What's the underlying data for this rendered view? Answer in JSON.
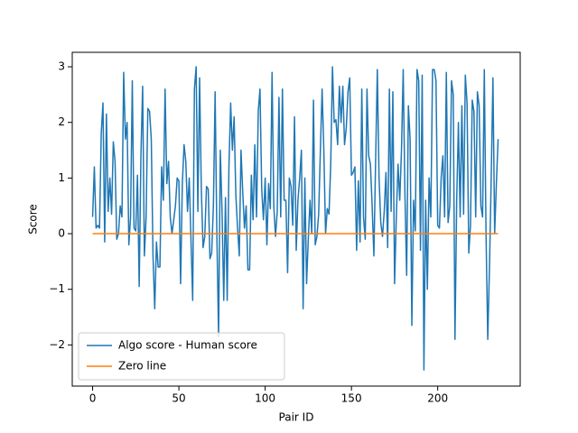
{
  "chart_data": {
    "type": "line",
    "xlabel": "Pair ID",
    "ylabel": "Score",
    "x": [
      0,
      1,
      2,
      3,
      4,
      5,
      6,
      7,
      8,
      9,
      10,
      11,
      12,
      13,
      14,
      15,
      16,
      17,
      18,
      19,
      20,
      21,
      22,
      23,
      24,
      25,
      26,
      27,
      28,
      29,
      30,
      31,
      32,
      33,
      34,
      35,
      36,
      37,
      38,
      39,
      40,
      41,
      42,
      43,
      44,
      45,
      46,
      47,
      48,
      49,
      50,
      51,
      52,
      53,
      54,
      55,
      56,
      57,
      58,
      59,
      60,
      61,
      62,
      63,
      64,
      65,
      66,
      67,
      68,
      69,
      70,
      71,
      72,
      73,
      74,
      75,
      76,
      77,
      78,
      79,
      80,
      81,
      82,
      83,
      84,
      85,
      86,
      87,
      88,
      89,
      90,
      91,
      92,
      93,
      94,
      95,
      96,
      97,
      98,
      99,
      100,
      101,
      102,
      103,
      104,
      105,
      106,
      107,
      108,
      109,
      110,
      111,
      112,
      113,
      114,
      115,
      116,
      117,
      118,
      119,
      120,
      121,
      122,
      123,
      124,
      125,
      126,
      127,
      128,
      129,
      130,
      131,
      132,
      133,
      134,
      135,
      136,
      137,
      138,
      139,
      140,
      141,
      142,
      143,
      144,
      145,
      146,
      147,
      148,
      149,
      150,
      151,
      152,
      153,
      154,
      155,
      156,
      157,
      158,
      159,
      160,
      161,
      162,
      163,
      164,
      165,
      166,
      167,
      168,
      169,
      170,
      171,
      172,
      173,
      174,
      175,
      176,
      177,
      178,
      179,
      180,
      181,
      182,
      183,
      184,
      185,
      186,
      187,
      188,
      189,
      190,
      191,
      192,
      193,
      194,
      195,
      196,
      197,
      198,
      199,
      200,
      201,
      202,
      203,
      204,
      205,
      206,
      207,
      208,
      209,
      210,
      211,
      212,
      213,
      214,
      215,
      216,
      217,
      218,
      219,
      220,
      221,
      222,
      223,
      224,
      225,
      226,
      227,
      228,
      229,
      230,
      231,
      232,
      233,
      234,
      235
    ],
    "series": [
      {
        "name": "Algo score - Human score",
        "color": "#1f77b4",
        "values": [
          0.3,
          1.2,
          0.1,
          0.15,
          0.1,
          1.8,
          2.35,
          -0.15,
          2.15,
          0.4,
          1.0,
          0.35,
          1.65,
          1.3,
          -0.1,
          0.0,
          0.5,
          0.3,
          2.9,
          1.7,
          2.0,
          -0.2,
          0.3,
          2.75,
          0.1,
          0.05,
          1.05,
          -0.95,
          1.4,
          2.65,
          -0.4,
          0.3,
          2.25,
          2.2,
          1.7,
          -0.4,
          -1.35,
          -0.15,
          -0.6,
          -0.6,
          1.2,
          0.6,
          2.6,
          0.9,
          1.3,
          0.3,
          0.0,
          0.25,
          0.5,
          1.0,
          0.95,
          -0.9,
          0.9,
          1.6,
          1.3,
          0.4,
          1.0,
          -0.1,
          -1.2,
          2.6,
          3.0,
          0.4,
          2.8,
          0.8,
          -0.25,
          -0.05,
          0.85,
          0.8,
          -0.45,
          -0.35,
          0.5,
          2.55,
          0.0,
          -1.85,
          1.5,
          0.4,
          -1.2,
          0.65,
          -1.2,
          1.2,
          2.35,
          1.5,
          2.1,
          0.7,
          0.1,
          -0.4,
          1.5,
          0.75,
          0.1,
          0.5,
          -0.65,
          -0.65,
          1.05,
          0.25,
          1.6,
          0.3,
          2.2,
          2.6,
          0.8,
          0.25,
          1.0,
          -0.2,
          0.9,
          0.45,
          2.9,
          0.5,
          -0.05,
          0.4,
          2.45,
          0.3,
          2.6,
          0.6,
          0.6,
          -0.7,
          1.0,
          0.85,
          0.15,
          2.1,
          -0.3,
          0.6,
          1.0,
          1.5,
          -1.35,
          1.0,
          -0.9,
          -0.1,
          0.6,
          0.0,
          2.4,
          -0.2,
          -0.05,
          0.35,
          1.5,
          2.6,
          1.5,
          0.0,
          0.45,
          0.35,
          1.25,
          3.0,
          2.0,
          2.05,
          1.6,
          2.65,
          2.0,
          2.65,
          1.6,
          1.9,
          2.55,
          2.8,
          1.05,
          1.1,
          1.2,
          -0.3,
          0.95,
          -0.15,
          2.6,
          0.3,
          -0.1,
          2.6,
          1.4,
          1.25,
          0.5,
          -0.4,
          1.3,
          2.95,
          1.0,
          0.2,
          -0.05,
          0.4,
          1.1,
          -0.25,
          2.6,
          0.4,
          2.55,
          -0.9,
          0.3,
          1.25,
          0.6,
          1.5,
          2.95,
          0.7,
          -0.75,
          2.3,
          1.7,
          -1.65,
          0.6,
          0.05,
          2.95,
          2.75,
          -0.3,
          2.85,
          -2.45,
          0.6,
          -1.0,
          1.0,
          0.3,
          2.95,
          2.95,
          2.75,
          0.15,
          0.1,
          1.0,
          1.4,
          0.3,
          2.9,
          0.2,
          0.5,
          2.75,
          2.5,
          -1.9,
          0.6,
          2.0,
          0.3,
          2.3,
          0.35,
          2.85,
          2.35,
          -0.35,
          0.15,
          2.4,
          2.2,
          0.3,
          2.55,
          2.3,
          0.5,
          0.3,
          2.95,
          0.0,
          -1.9,
          -0.6,
          1.0,
          2.8,
          0.0,
          0.9,
          1.7
        ]
      },
      {
        "name": "Zero line",
        "color": "#ff7f0e",
        "values": [
          0,
          0,
          0,
          0,
          0,
          0,
          0,
          0,
          0,
          0,
          0,
          0,
          0,
          0,
          0,
          0,
          0,
          0,
          0,
          0,
          0,
          0,
          0,
          0,
          0,
          0,
          0,
          0,
          0,
          0,
          0,
          0,
          0,
          0,
          0,
          0,
          0,
          0,
          0,
          0,
          0,
          0,
          0,
          0,
          0,
          0,
          0,
          0,
          0,
          0,
          0,
          0,
          0,
          0,
          0,
          0,
          0,
          0,
          0,
          0,
          0,
          0,
          0,
          0,
          0,
          0,
          0,
          0,
          0,
          0,
          0,
          0,
          0,
          0,
          0,
          0,
          0,
          0,
          0,
          0,
          0,
          0,
          0,
          0,
          0,
          0,
          0,
          0,
          0,
          0,
          0,
          0,
          0,
          0,
          0,
          0,
          0,
          0,
          0,
          0,
          0,
          0,
          0,
          0,
          0,
          0,
          0,
          0,
          0,
          0,
          0,
          0,
          0,
          0,
          0,
          0,
          0,
          0,
          0,
          0,
          0,
          0,
          0,
          0,
          0,
          0,
          0,
          0,
          0,
          0,
          0,
          0,
          0,
          0,
          0,
          0,
          0,
          0,
          0,
          0,
          0,
          0,
          0,
          0,
          0,
          0,
          0,
          0,
          0,
          0,
          0,
          0,
          0,
          0,
          0,
          0,
          0,
          0,
          0,
          0,
          0,
          0,
          0,
          0,
          0,
          0,
          0,
          0,
          0,
          0,
          0,
          0,
          0,
          0,
          0,
          0,
          0,
          0,
          0,
          0,
          0,
          0,
          0,
          0,
          0,
          0,
          0,
          0,
          0,
          0,
          0,
          0,
          0,
          0,
          0,
          0,
          0,
          0,
          0,
          0,
          0,
          0,
          0,
          0,
          0,
          0,
          0,
          0,
          0,
          0,
          0,
          0,
          0,
          0,
          0,
          0,
          0,
          0,
          0,
          0,
          0,
          0,
          0,
          0,
          0,
          0,
          0,
          0,
          0,
          0,
          0,
          0,
          0,
          0,
          0,
          0
        ]
      }
    ],
    "xlim": [
      -11.8,
      247.8
    ],
    "xticks": [
      0,
      50,
      100,
      150,
      200
    ],
    "ylim": [
      -2.74,
      3.26
    ],
    "yticks": [
      {
        "value": -2,
        "label": "−2"
      },
      {
        "value": -1,
        "label": "−1"
      },
      0,
      1,
      2,
      3
    ],
    "legend": "lower left"
  }
}
